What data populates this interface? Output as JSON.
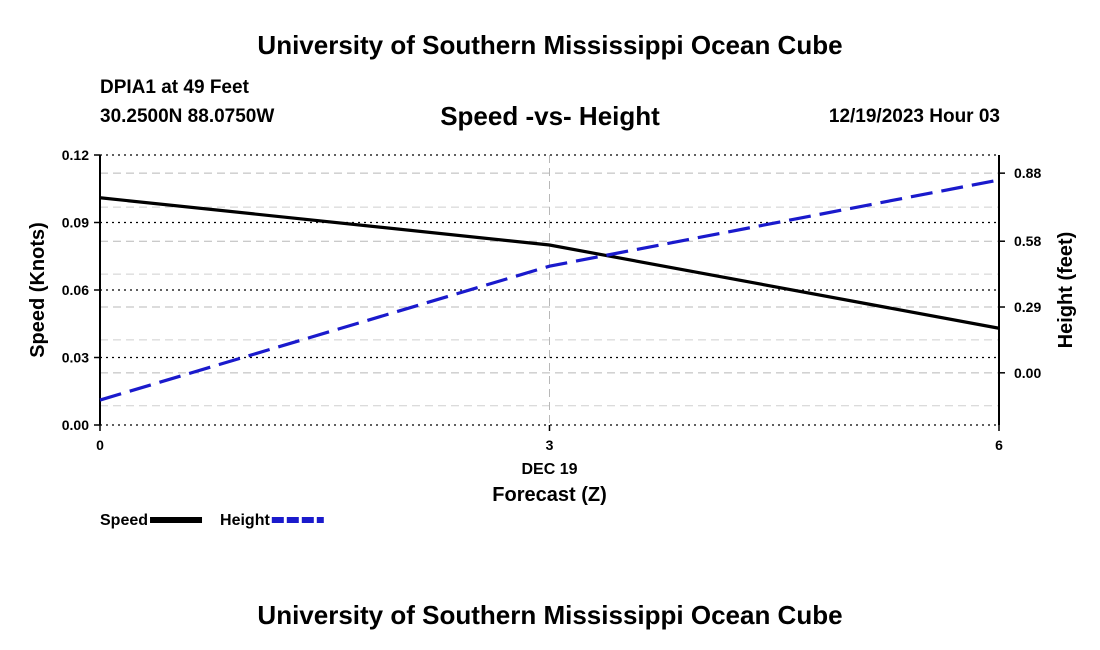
{
  "header": {
    "title": "University of Southern Mississippi Ocean Cube",
    "station": "DPIA1 at 49 Feet",
    "coords": "30.2500N  88.0750W",
    "subtitle": "Speed -vs- Height",
    "datetime": "12/19/2023 Hour 03"
  },
  "footer": {
    "title": "University of Southern Mississippi Ocean Cube"
  },
  "chart_data": {
    "type": "line",
    "title": "Speed -vs- Height",
    "xlabel": "Forecast (Z)",
    "x_date_label": "DEC 19",
    "x": [
      0,
      3,
      6
    ],
    "xlim": [
      0,
      6
    ],
    "x_ticks": [
      "0",
      "3",
      "6"
    ],
    "ylabel_left": "Speed (Knots)",
    "ylabel_right": "Height (feet)",
    "ylim_left": [
      0.0,
      0.12
    ],
    "y_ticks_left": [
      "0.00",
      "0.03",
      "0.06",
      "0.09",
      "0.12"
    ],
    "ylim_right": [
      -0.23,
      0.96
    ],
    "y_ticks_right": [
      "0.00",
      "0.29",
      "0.58",
      "0.88"
    ],
    "grid": true,
    "series": [
      {
        "name": "Speed",
        "axis": "left",
        "style": "solid",
        "color": "#000000",
        "values": [
          0.101,
          0.08,
          0.043
        ]
      },
      {
        "name": "Height",
        "axis": "right",
        "style": "dashed",
        "color": "#1a1acc",
        "values": [
          -0.12,
          0.47,
          0.85
        ]
      }
    ],
    "legend": [
      "Speed",
      "Height"
    ]
  }
}
